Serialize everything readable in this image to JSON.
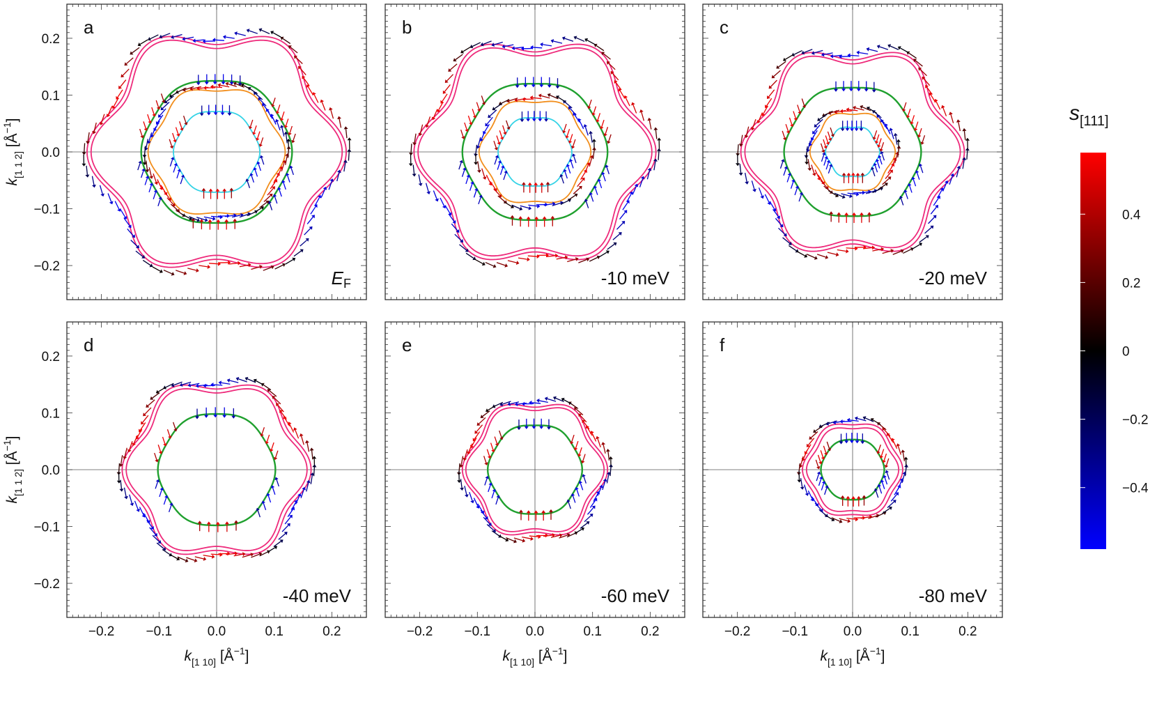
{
  "chart_data": [
    {
      "type": "scatter",
      "panel": "a",
      "energy_label": "E",
      "energy_sub": "F",
      "xlim": [
        -0.26,
        0.26
      ],
      "ylim": [
        -0.26,
        0.26
      ],
      "xticks": [
        "-0.2",
        "-0.1",
        "0.0",
        "0.1",
        "0.2"
      ],
      "yticks": [
        "0.2",
        "0.1",
        "0.0",
        "-0.1",
        "-0.2"
      ],
      "contours": [
        {
          "name": "outer-pink",
          "color": "#ee2a7b",
          "r0": 0.207,
          "amp": 0.018
        },
        {
          "name": "outer-pink-2",
          "color": "#ee2a7b",
          "r0": 0.2,
          "amp": 0.018
        },
        {
          "name": "green",
          "color": "#1fa02e",
          "r0": 0.128,
          "amp": 0.003
        },
        {
          "name": "orange",
          "color": "#f28e1c",
          "r0": 0.113,
          "amp": 0.006
        },
        {
          "name": "cyan",
          "color": "#34d3e6",
          "r0": 0.073,
          "amp": 0.002
        }
      ]
    },
    {
      "type": "scatter",
      "panel": "b",
      "energy_label": "-10 meV",
      "energy_sub": "",
      "xlim": [
        -0.26,
        0.26
      ],
      "ylim": [
        -0.26,
        0.26
      ],
      "xticks": [
        "-0.2",
        "-0.1",
        "0.0",
        "0.1",
        "0.2"
      ],
      "yticks": [
        "0.2",
        "0.1",
        "0.0",
        "-0.1",
        "-0.2"
      ],
      "contours": [
        {
          "name": "outer-pink",
          "color": "#ee2a7b",
          "r0": 0.193,
          "amp": 0.017
        },
        {
          "name": "outer-pink-2",
          "color": "#ee2a7b",
          "r0": 0.186,
          "amp": 0.017
        },
        {
          "name": "green",
          "color": "#1fa02e",
          "r0": 0.123,
          "amp": 0.003
        },
        {
          "name": "orange",
          "color": "#f28e1c",
          "r0": 0.092,
          "amp": 0.005
        },
        {
          "name": "cyan",
          "color": "#34d3e6",
          "r0": 0.062,
          "amp": 0.002
        }
      ]
    },
    {
      "type": "scatter",
      "panel": "c",
      "energy_label": "-20 meV",
      "energy_sub": "",
      "xlim": [
        -0.26,
        0.26
      ],
      "ylim": [
        -0.26,
        0.26
      ],
      "xticks": [
        "-0.2",
        "-0.1",
        "0.0",
        "0.1",
        "0.2"
      ],
      "yticks": [
        "0.2",
        "0.1",
        "0.0",
        "-0.1",
        "-0.2"
      ],
      "contours": [
        {
          "name": "outer-pink",
          "color": "#ee2a7b",
          "r0": 0.178,
          "amp": 0.016
        },
        {
          "name": "outer-pink-2",
          "color": "#ee2a7b",
          "r0": 0.171,
          "amp": 0.016
        },
        {
          "name": "green",
          "color": "#1fa02e",
          "r0": 0.116,
          "amp": 0.003
        },
        {
          "name": "orange",
          "color": "#f28e1c",
          "r0": 0.07,
          "amp": 0.004
        },
        {
          "name": "cyan",
          "color": "#34d3e6",
          "r0": 0.045,
          "amp": 0.002
        }
      ]
    },
    {
      "type": "scatter",
      "panel": "d",
      "energy_label": "-40 meV",
      "energy_sub": "",
      "xlim": [
        -0.26,
        0.26
      ],
      "ylim": [
        -0.26,
        0.26
      ],
      "xticks": [
        "-0.2",
        "-0.1",
        "0.0",
        "0.1",
        "0.2"
      ],
      "yticks": [
        "0.2",
        "0.1",
        "0.0",
        "-0.1",
        "-0.2"
      ],
      "contours": [
        {
          "name": "outer-pink",
          "color": "#ee2a7b",
          "r0": 0.153,
          "amp": 0.011
        },
        {
          "name": "outer-pink-2",
          "color": "#ee2a7b",
          "r0": 0.146,
          "amp": 0.011
        },
        {
          "name": "green",
          "color": "#1fa02e",
          "r0": 0.1,
          "amp": 0.002
        }
      ]
    },
    {
      "type": "scatter",
      "panel": "e",
      "energy_label": "-60 meV",
      "energy_sub": "",
      "xlim": [
        -0.26,
        0.26
      ],
      "ylim": [
        -0.26,
        0.26
      ],
      "xticks": [
        "-0.2",
        "-0.1",
        "0.0",
        "0.1",
        "0.2"
      ],
      "yticks": [
        "0.2",
        "0.1",
        "0.0",
        "-0.1",
        "-0.2"
      ],
      "contours": [
        {
          "name": "outer-pink",
          "color": "#ee2a7b",
          "r0": 0.118,
          "amp": 0.008
        },
        {
          "name": "outer-pink-2",
          "color": "#ee2a7b",
          "r0": 0.112,
          "amp": 0.008
        },
        {
          "name": "green",
          "color": "#1fa02e",
          "r0": 0.08,
          "amp": 0.002
        }
      ]
    },
    {
      "type": "scatter",
      "panel": "f",
      "energy_label": "-80 meV",
      "energy_sub": "",
      "xlim": [
        -0.26,
        0.26
      ],
      "ylim": [
        -0.26,
        0.26
      ],
      "xticks": [
        "-0.2",
        "-0.1",
        "0.0",
        "0.1",
        "0.2"
      ],
      "yticks": [
        "0.2",
        "0.1",
        "0.0",
        "-0.1",
        "-0.2"
      ],
      "contours": [
        {
          "name": "outer-pink",
          "color": "#ee2a7b",
          "r0": 0.083,
          "amp": 0.004
        },
        {
          "name": "outer-pink-2",
          "color": "#ee2a7b",
          "r0": 0.076,
          "amp": 0.004
        },
        {
          "name": "green",
          "color": "#1fa02e",
          "r0": 0.054,
          "amp": 0.001
        }
      ]
    }
  ],
  "axes": {
    "xlabel_main": "k",
    "xlabel_sub_bar": "1",
    "xlabel_sub_rest": "10",
    "ylabel_main": "k",
    "ylabel_sub_bar1": "1",
    "ylabel_sub_bar2": "1",
    "ylabel_sub_rest": "2",
    "unit": "[Å",
    "unit_exp": "−1",
    "unit_close": "]"
  },
  "colorbar": {
    "title": "s",
    "title_sub": "[111]",
    "range": [
      -0.58,
      0.58
    ],
    "ticks": [
      "0.4",
      "0.2",
      "0",
      "−0.2",
      "−0.4"
    ],
    "tick_values": [
      0.4,
      0.2,
      0,
      -0.2,
      -0.4
    ],
    "colors": [
      "#ff0000",
      "#000000",
      "#0000ff"
    ]
  }
}
